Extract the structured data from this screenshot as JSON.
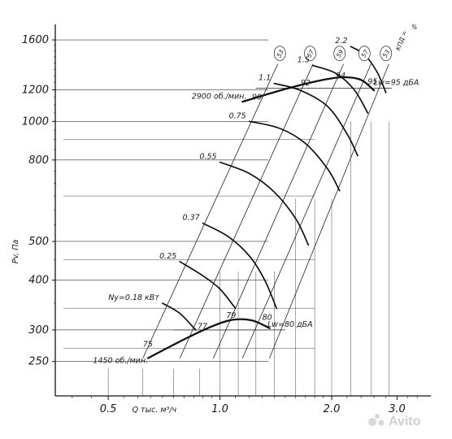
{
  "chart_data": {
    "type": "line",
    "title": "",
    "xlabel": "Q тыс. м³/ч",
    "ylabel": "Pv, Па",
    "xscale": "log",
    "yscale": "log",
    "xlim": [
      0.36,
      3.7
    ],
    "ylim": [
      205,
      1750
    ],
    "x_ticks": [
      {
        "value": 0.5,
        "label": "0.5"
      },
      {
        "value": 1.0,
        "label": "1.0"
      },
      {
        "value": 2.0,
        "label": "2.0"
      },
      {
        "value": 3.0,
        "label": "3.0"
      }
    ],
    "y_ticks": [
      {
        "value": 250,
        "label": "250"
      },
      {
        "value": 300,
        "label": "300"
      },
      {
        "value": 400,
        "label": "400"
      },
      {
        "value": 500,
        "label": "500"
      },
      {
        "value": 800,
        "label": "800"
      },
      {
        "value": 1000,
        "label": "1000"
      },
      {
        "value": 1200,
        "label": "1200"
      },
      {
        "value": 1600,
        "label": "1600"
      }
    ],
    "speed_curves": [
      {
        "name": "2900 об./мин.",
        "points": [
          [
            1.15,
            1120
          ],
          [
            1.5,
            1205
          ],
          [
            1.85,
            1265
          ],
          [
            2.15,
            1290
          ],
          [
            2.4,
            1270
          ],
          [
            2.6,
            1195
          ]
        ]
      },
      {
        "name": "1450 об./мин.",
        "points": [
          [
            0.64,
            255
          ],
          [
            0.8,
            284
          ],
          [
            0.95,
            306
          ],
          [
            1.08,
            318
          ],
          [
            1.22,
            317
          ],
          [
            1.36,
            303
          ]
        ]
      }
    ],
    "power_curves": [
      {
        "name": "0.18",
        "label": "Ny=0.18 кВт",
        "points": [
          [
            0.7,
            350
          ],
          [
            0.78,
            330
          ],
          [
            0.86,
            300
          ]
        ]
      },
      {
        "name": "0.25",
        "label": "0.25",
        "points": [
          [
            0.78,
            445
          ],
          [
            0.9,
            410
          ],
          [
            1.0,
            380
          ],
          [
            1.1,
            340
          ]
        ]
      },
      {
        "name": "0.37",
        "label": "0.37",
        "points": [
          [
            0.9,
            555
          ],
          [
            1.05,
            515
          ],
          [
            1.2,
            460
          ],
          [
            1.32,
            400
          ],
          [
            1.42,
            340
          ]
        ]
      },
      {
        "name": "0.55",
        "label": "0.55",
        "points": [
          [
            1.0,
            790
          ],
          [
            1.2,
            740
          ],
          [
            1.4,
            665
          ],
          [
            1.6,
            570
          ],
          [
            1.73,
            490
          ]
        ]
      },
      {
        "name": "0.75",
        "label": "0.75",
        "points": [
          [
            1.2,
            1000
          ],
          [
            1.45,
            960
          ],
          [
            1.7,
            880
          ],
          [
            1.95,
            760
          ],
          [
            2.1,
            670
          ]
        ]
      },
      {
        "name": "1.1",
        "label": "1.1",
        "points": [
          [
            1.4,
            1245
          ],
          [
            1.65,
            1195
          ],
          [
            1.95,
            1090
          ],
          [
            2.2,
            930
          ],
          [
            2.35,
            820
          ]
        ]
      },
      {
        "name": "1.5",
        "label": "1.5",
        "points": [
          [
            1.78,
            1380
          ],
          [
            2.05,
            1320
          ],
          [
            2.3,
            1200
          ],
          [
            2.5,
            1050
          ]
        ]
      },
      {
        "name": "2.2",
        "label": "2.2",
        "points": [
          [
            2.25,
            1540
          ],
          [
            2.45,
            1470
          ],
          [
            2.65,
            1330
          ],
          [
            2.8,
            1180
          ]
        ]
      }
    ],
    "efficiency_lines": [
      {
        "name": "53",
        "points": [
          [
            0.62,
            255
          ],
          [
            1.43,
            1390
          ]
        ]
      },
      {
        "name": "57",
        "points": [
          [
            0.78,
            255
          ],
          [
            1.78,
            1390
          ]
        ]
      },
      {
        "name": "59",
        "points": [
          [
            0.96,
            255
          ],
          [
            2.15,
            1390
          ]
        ]
      },
      {
        "name": "57",
        "points": [
          [
            1.15,
            255
          ],
          [
            2.55,
            1390
          ]
        ]
      },
      {
        "name": "53",
        "points": [
          [
            1.36,
            255
          ],
          [
            2.85,
            1390
          ]
        ]
      }
    ],
    "efficiency_labels": [
      {
        "value": "53",
        "at": [
          1.45,
          1480
        ]
      },
      {
        "value": "57",
        "at": [
          1.75,
          1480
        ]
      },
      {
        "value": "59",
        "at": [
          2.1,
          1480
        ]
      },
      {
        "value": "57",
        "at": [
          2.45,
          1480
        ]
      },
      {
        "value": "53",
        "at": [
          2.8,
          1480
        ]
      }
    ],
    "efficiency_title": "КПД =",
    "efficiency_unit": "%",
    "noise_lines": [
      {
        "name": "Lw=95 дБА",
        "points": [
          [
            1.25,
            1210
          ],
          [
            2.9,
            1210
          ]
        ]
      },
      {
        "name": "Lw=80 дБА",
        "points": [
          [
            0.75,
            300
          ],
          [
            1.5,
            300
          ]
        ]
      }
    ],
    "noise_values_2900": [
      {
        "value": "90",
        "at": [
          1.22,
          1135
        ]
      },
      {
        "value": "92",
        "at": [
          1.65,
          1230
        ]
      },
      {
        "value": "94",
        "at": [
          2.05,
          1285
        ]
      },
      {
        "value": "95",
        "at": [
          2.5,
          1240
        ]
      }
    ],
    "noise_values_1450": [
      {
        "value": "75",
        "at": [
          0.62,
          272
        ]
      },
      {
        "value": "77",
        "at": [
          0.87,
          302
        ]
      },
      {
        "value": "79",
        "at": [
          1.04,
          322
        ]
      },
      {
        "value": "80",
        "at": [
          1.3,
          318
        ]
      }
    ],
    "grid": "partial"
  },
  "labels": {
    "speed_2900": "2900 об./мин.",
    "speed_1450": "1450 об./мин.",
    "noise_95": "Lw=95 дБА",
    "noise_80": "Lw=80 дБА",
    "y_axis": "Pv, Па",
    "x_axis": "Q тыс. м³/ч",
    "efficiency": "КПД =",
    "efficiency_unit": "%"
  },
  "watermark": {
    "text": "Avito",
    "color": "#c8c8c8"
  }
}
